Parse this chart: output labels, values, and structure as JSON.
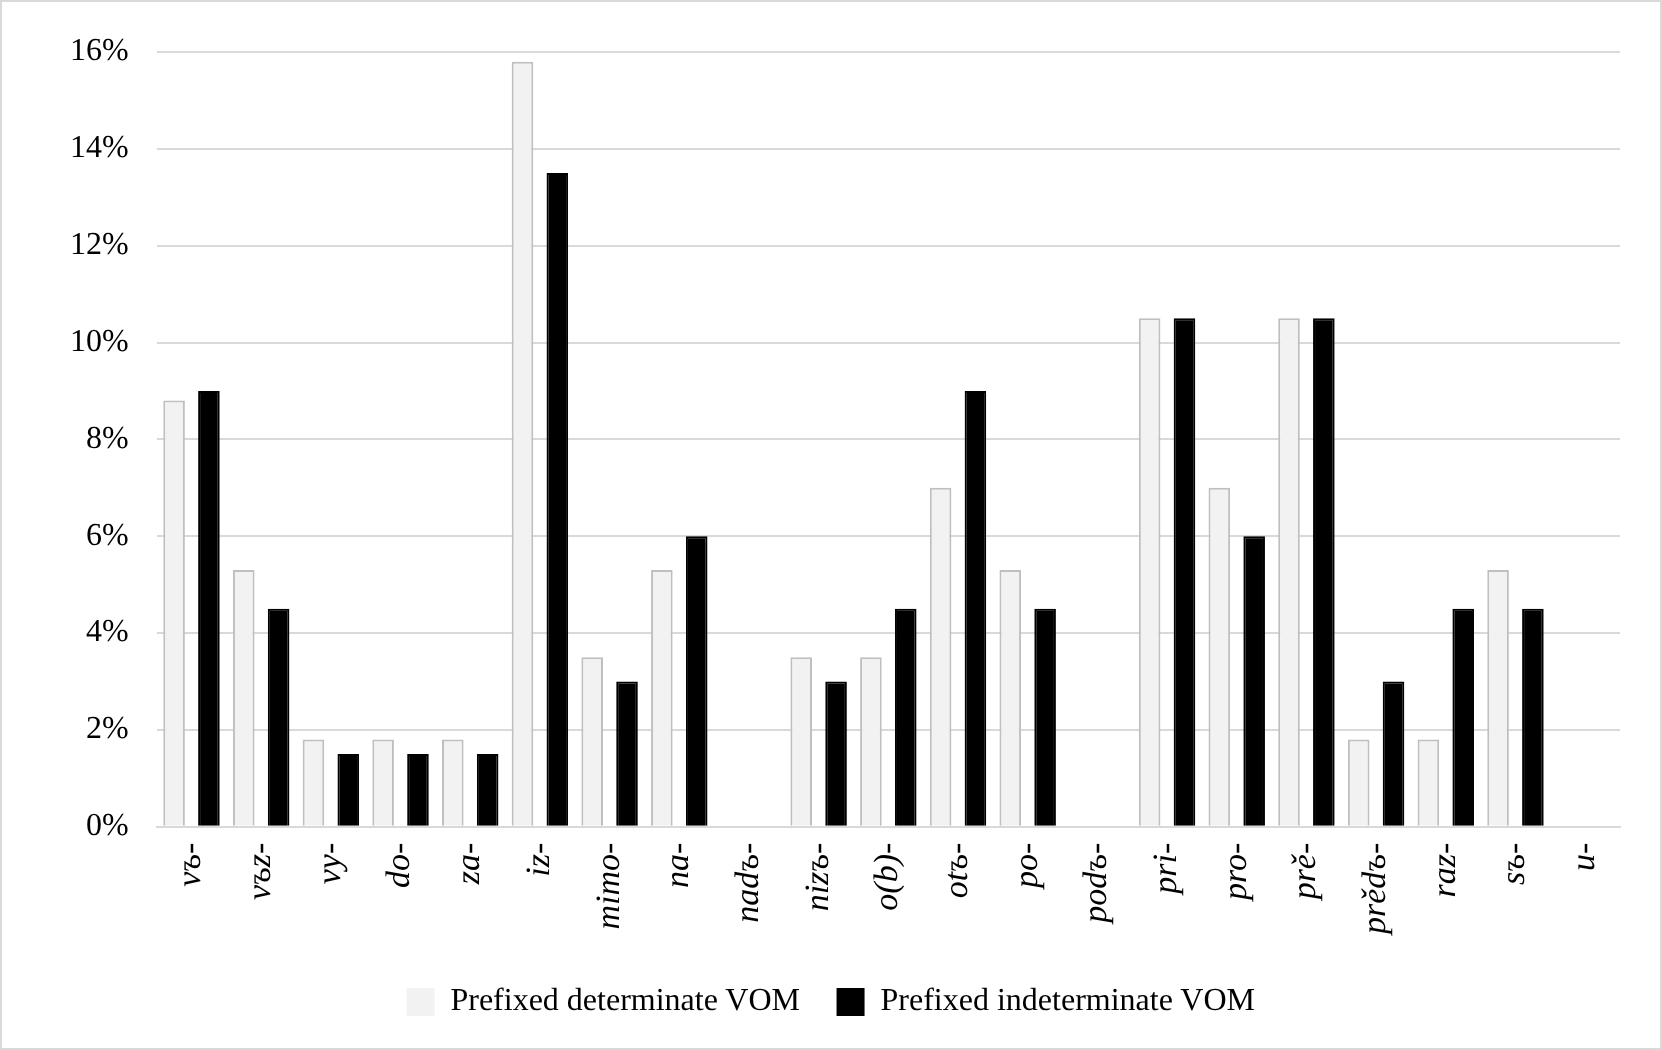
{
  "chart_data": {
    "type": "bar",
    "categories": [
      "vъ-",
      "vъz-",
      "vy-",
      "do-",
      "za-",
      "iz-",
      "mimo-",
      "na-",
      "nadъ-",
      "nizъ-",
      "o(b)-",
      "otъ-",
      "po-",
      "podъ-",
      "pri-",
      "pro-",
      "prě-",
      "prědъ-",
      "raz-",
      "sъ-",
      "u-"
    ],
    "series": [
      {
        "name": "Prefixed determinate VOM",
        "color": "#f2f2f2",
        "values": [
          8.8,
          5.3,
          1.8,
          1.8,
          1.8,
          15.8,
          3.5,
          5.3,
          0,
          3.5,
          3.5,
          7.0,
          5.3,
          0,
          10.5,
          7.0,
          10.5,
          1.8,
          1.8,
          5.3,
          0
        ]
      },
      {
        "name": "Prefixed indeterminate VOM",
        "color": "#000000",
        "values": [
          9.0,
          4.5,
          1.5,
          1.5,
          1.5,
          13.5,
          3.0,
          6.0,
          0,
          3.0,
          4.5,
          9.0,
          4.5,
          0,
          10.5,
          6.0,
          10.5,
          3.0,
          4.5,
          4.5,
          0
        ]
      }
    ],
    "ylim": [
      0,
      16
    ],
    "yticks": [
      {
        "value": 0,
        "label": "0%"
      },
      {
        "value": 2,
        "label": "2%"
      },
      {
        "value": 4,
        "label": "4%"
      },
      {
        "value": 6,
        "label": "6%"
      },
      {
        "value": 8,
        "label": "8%"
      },
      {
        "value": 10,
        "label": "10%"
      },
      {
        "value": 12,
        "label": "12%"
      },
      {
        "value": 14,
        "label": "14%"
      },
      {
        "value": 16,
        "label": "16%"
      }
    ],
    "grid": "y",
    "legend": "bottom"
  }
}
